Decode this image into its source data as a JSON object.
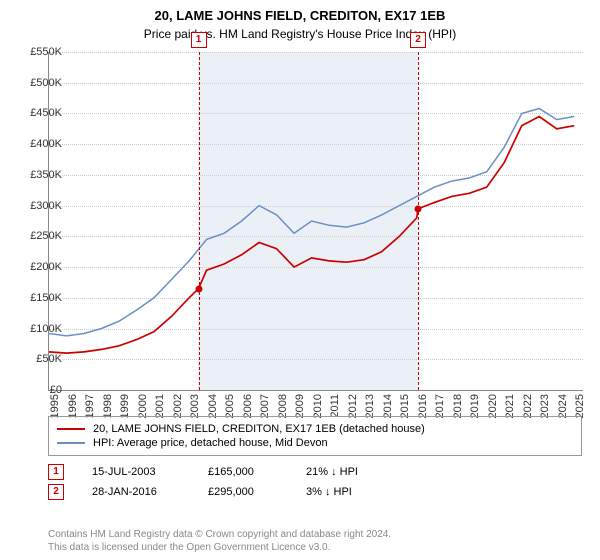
{
  "title": "20, LAME JOHNS FIELD, CREDITON, EX17 1EB",
  "subtitle": "Price paid vs. HM Land Registry's House Price Index (HPI)",
  "chart": {
    "type": "line",
    "ylim": [
      0,
      550000
    ],
    "ytick_step": 50000,
    "y_ticks": [
      "£0",
      "£50K",
      "£100K",
      "£150K",
      "£200K",
      "£250K",
      "£300K",
      "£350K",
      "£400K",
      "£450K",
      "£500K",
      "£550K"
    ],
    "x_years": [
      1995,
      1996,
      1997,
      1998,
      1999,
      2000,
      2001,
      2002,
      2003,
      2004,
      2005,
      2006,
      2007,
      2008,
      2009,
      2010,
      2011,
      2012,
      2013,
      2014,
      2015,
      2016,
      2017,
      2018,
      2019,
      2020,
      2021,
      2022,
      2023,
      2024,
      2025
    ],
    "xlim": [
      1995,
      2025.5
    ],
    "background_color": "#ffffff",
    "grid_color": "#cccccc",
    "band": {
      "start": 2003.5,
      "end": 2016.1,
      "color": "#eaf0f6"
    },
    "series": [
      {
        "name": "property",
        "color": "#cc0000",
        "width": 1.7,
        "data": [
          [
            1995,
            62000
          ],
          [
            1996,
            60000
          ],
          [
            1997,
            62000
          ],
          [
            1998,
            66000
          ],
          [
            1999,
            72000
          ],
          [
            2000,
            82000
          ],
          [
            2001,
            95000
          ],
          [
            2002,
            120000
          ],
          [
            2003,
            150000
          ],
          [
            2003.54,
            165000
          ],
          [
            2004,
            195000
          ],
          [
            2005,
            205000
          ],
          [
            2006,
            220000
          ],
          [
            2007,
            240000
          ],
          [
            2008,
            230000
          ],
          [
            2009,
            200000
          ],
          [
            2010,
            215000
          ],
          [
            2011,
            210000
          ],
          [
            2012,
            208000
          ],
          [
            2013,
            212000
          ],
          [
            2014,
            225000
          ],
          [
            2015,
            250000
          ],
          [
            2016,
            280000
          ],
          [
            2016.08,
            295000
          ],
          [
            2017,
            305000
          ],
          [
            2018,
            315000
          ],
          [
            2019,
            320000
          ],
          [
            2020,
            330000
          ],
          [
            2021,
            370000
          ],
          [
            2022,
            430000
          ],
          [
            2023,
            445000
          ],
          [
            2024,
            425000
          ],
          [
            2025,
            430000
          ]
        ]
      },
      {
        "name": "hpi",
        "color": "#6a8fc5",
        "width": 1.5,
        "data": [
          [
            1995,
            92000
          ],
          [
            1996,
            88000
          ],
          [
            1997,
            92000
          ],
          [
            1998,
            100000
          ],
          [
            1999,
            112000
          ],
          [
            2000,
            130000
          ],
          [
            2001,
            150000
          ],
          [
            2002,
            180000
          ],
          [
            2003,
            210000
          ],
          [
            2004,
            245000
          ],
          [
            2005,
            255000
          ],
          [
            2006,
            275000
          ],
          [
            2007,
            300000
          ],
          [
            2008,
            285000
          ],
          [
            2009,
            255000
          ],
          [
            2010,
            275000
          ],
          [
            2011,
            268000
          ],
          [
            2012,
            265000
          ],
          [
            2013,
            272000
          ],
          [
            2014,
            285000
          ],
          [
            2015,
            300000
          ],
          [
            2016,
            315000
          ],
          [
            2017,
            330000
          ],
          [
            2018,
            340000
          ],
          [
            2019,
            345000
          ],
          [
            2020,
            355000
          ],
          [
            2021,
            395000
          ],
          [
            2022,
            450000
          ],
          [
            2023,
            458000
          ],
          [
            2024,
            440000
          ],
          [
            2025,
            445000
          ]
        ]
      }
    ],
    "markers": [
      {
        "n": "1",
        "x": 2003.54,
        "y": 165000,
        "color": "#cc0000"
      },
      {
        "n": "2",
        "x": 2016.08,
        "y": 295000,
        "color": "#cc0000"
      }
    ],
    "label_fontsize": 11
  },
  "legend": [
    {
      "color": "#cc0000",
      "label": "20, LAME JOHNS FIELD, CREDITON, EX17 1EB (detached house)"
    },
    {
      "color": "#6a8fc5",
      "label": "HPI: Average price, detached house, Mid Devon"
    }
  ],
  "events": [
    {
      "n": "1",
      "color": "#cc0000",
      "date": "15-JUL-2003",
      "price": "£165,000",
      "delta": "21% ↓ HPI"
    },
    {
      "n": "2",
      "color": "#cc0000",
      "date": "28-JAN-2016",
      "price": "£295,000",
      "delta": "3% ↓ HPI"
    }
  ],
  "attribution": {
    "line1": "Contains HM Land Registry data © Crown copyright and database right 2024.",
    "line2": "This data is licensed under the Open Government Licence v3.0."
  }
}
